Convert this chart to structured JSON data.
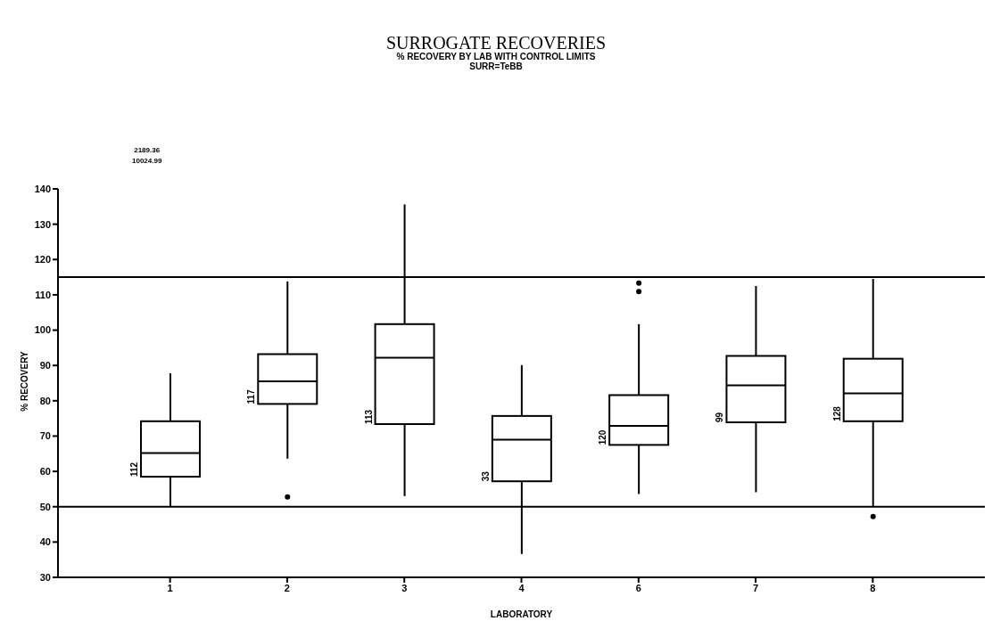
{
  "chart_data": {
    "type": "box",
    "title": "SURROGATE RECOVERIES",
    "subtitle": "% RECOVERY BY LAB WITH CONTROL LIMITS\nSURR=TeBB",
    "xlabel": "LABORATORY",
    "ylabel": "% RECOVERY",
    "categories": [
      "1",
      "2",
      "3",
      "4",
      "6",
      "7",
      "8"
    ],
    "boxes": [
      {
        "low": 50,
        "q1": 58.5,
        "median": 65.2,
        "q3": 74.2,
        "high": 87.8
      },
      {
        "low": 63.6,
        "q1": 79.1,
        "median": 85.5,
        "q3": 93.2,
        "high": 113.8,
        "outliers": [
          52.8
        ]
      },
      {
        "low": 53,
        "q1": 73.4,
        "median": 92.2,
        "q3": 101.7,
        "high": 135.6
      },
      {
        "low": 36.6,
        "q1": 57.2,
        "median": 69,
        "q3": 75.7,
        "high": 90.1
      },
      {
        "low": 53.6,
        "q1": 67.5,
        "median": 72.9,
        "q3": 81.6,
        "high": 101.7,
        "outliers": [
          113.3,
          110.9
        ]
      },
      {
        "low": 54.1,
        "q1": 73.9,
        "median": 84.4,
        "q3": 92.7,
        "high": 112.5
      },
      {
        "low": 50,
        "q1": 74.2,
        "median": 82.1,
        "q3": 91.9,
        "high": 114.5,
        "outliers": [
          47.2
        ]
      }
    ],
    "ylim": [
      30,
      140
    ],
    "yticks": [
      30,
      40,
      50,
      60,
      70,
      80,
      90,
      100,
      110,
      120,
      130,
      140
    ],
    "ref_lines": [
      {
        "axis": "y",
        "value": 115,
        "color": "#000000"
      },
      {
        "axis": "y",
        "value": 50,
        "color": "#000000"
      }
    ],
    "annotations": [
      "2189.36",
      "10024.99",
      "112",
      "117",
      "113",
      "33",
      "120",
      "99",
      "128"
    ],
    "grid": false,
    "legend": false
  }
}
